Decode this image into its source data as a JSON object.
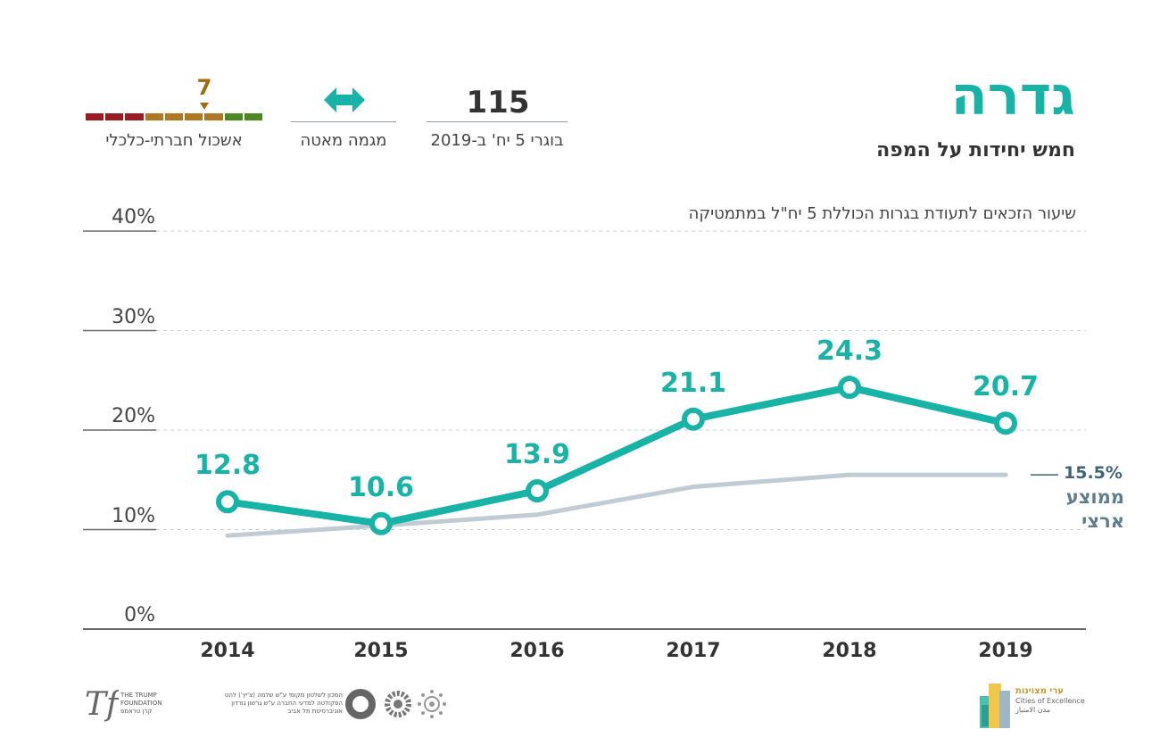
{
  "header": {
    "city_name": "גדרה",
    "city_subtitle": "חמש יחידות על המפה"
  },
  "stats": {
    "graduates_count": "115",
    "graduates_label": "בוגרי 5 יח' ב-2019",
    "trend_label": "מגמה מאטה",
    "trend_icon": "double-arrow-icon",
    "cluster_value": "7",
    "cluster_label": "אשכול חברתי-כלכלי",
    "cluster_colors": [
      "#9b1b22",
      "#9b1b22",
      "#9b1b22",
      "#b07820",
      "#b07820",
      "#b07820",
      "#b07820",
      "#4c8a1e",
      "#4c8a1e"
    ]
  },
  "chart_data": {
    "type": "line",
    "title": "שיעור הזכאים לתעודת בגרות הכוללת 5 יח\"ל במתמטיקה",
    "categories": [
      "2014",
      "2015",
      "2016",
      "2017",
      "2018",
      "2019"
    ],
    "y_ticks": [
      "0%",
      "10%",
      "20%",
      "30%",
      "40%"
    ],
    "ylim": [
      0,
      40
    ],
    "grid": true,
    "series": [
      {
        "values": [
          12.8,
          10.6,
          13.9,
          21.1,
          24.3,
          20.7
        ],
        "labels": [
          "12.8",
          "10.6",
          "13.9",
          "21.1",
          "24.3",
          "20.7"
        ],
        "color": "#17b3a6"
      },
      {
        "values": [
          9.4,
          10.4,
          11.5,
          14.3,
          15.5,
          15.5
        ],
        "color": "#c0cbd3"
      }
    ],
    "average_value_label": "15.5%",
    "average_label_line1": "ממוצע",
    "average_label_line2": "ארצי"
  },
  "footer": {
    "trump_en_1": "THE TRUMP",
    "trump_en_2": "FOUNDATION",
    "trump_he": "קרן טראמפ",
    "institute_line1": "המכון לשלטון מקומי ע\"ש שלמה (צ'יץ') להט",
    "institute_line2": "הפקולטה למדעי החברה ע\"ש גרשון גורדון",
    "institute_line3": "אוניברסיטת תל אביב",
    "cities_he": "ערי מצוינות",
    "cities_en": "Cities of Excellence",
    "cities_ar": "مدن الامتياز"
  },
  "colors": {
    "accent": "#17b3a6",
    "national_average": "#c0cbd3",
    "average_text": "#3f6478",
    "cluster_marker": "#a06a10"
  }
}
